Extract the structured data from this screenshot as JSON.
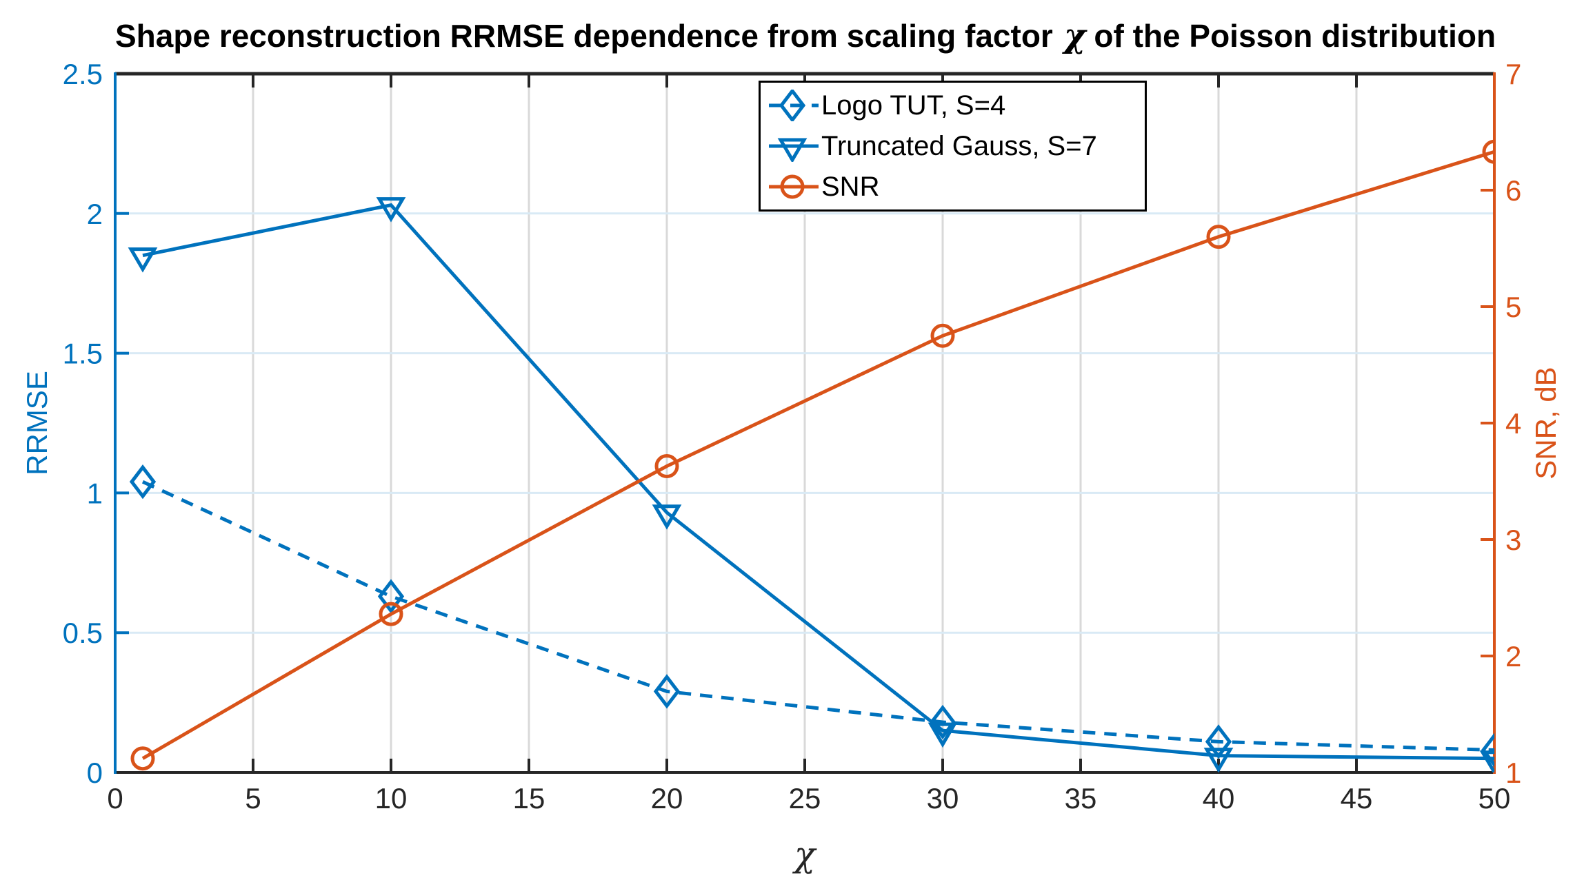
{
  "figure": {
    "title": {
      "prefix": "Shape reconstruction RRMSE dependence from scaling factor",
      "chi": "χ",
      "suffix": "of the Poisson distribution"
    },
    "colors": {
      "left_axis_blue": "#0072BD",
      "right_axis_orange": "#D95319",
      "x_axis_dark": "#262626",
      "y_grid": "#D9EAF5",
      "x_grid": "#D9D9D9",
      "background": "#FFFFFF",
      "legend_border": "#000000"
    }
  },
  "chart_data": {
    "type": "line",
    "title": "Shape reconstruction RRMSE dependence from scaling factor χ of the Poisson distribution",
    "x": [
      1,
      10,
      20,
      30,
      40,
      50
    ],
    "series": [
      {
        "name": "Logo TUT, S=4",
        "axis": "left",
        "color": "#0072BD",
        "line_style": "dashed",
        "marker": "diamond",
        "values": [
          1.04,
          0.63,
          0.29,
          0.18,
          0.11,
          0.08
        ]
      },
      {
        "name": "Truncated Gauss, S=7",
        "axis": "left",
        "color": "#0072BD",
        "line_style": "solid",
        "marker": "triangle-down",
        "values": [
          1.85,
          2.03,
          0.93,
          0.15,
          0.06,
          0.05
        ]
      },
      {
        "name": "SNR",
        "axis": "right",
        "color": "#D95319",
        "line_style": "solid",
        "marker": "circle",
        "values": [
          1.12,
          2.36,
          3.63,
          4.75,
          5.6,
          6.33
        ]
      }
    ],
    "xlabel": "χ",
    "ylabel_left": "RRMSE",
    "ylabel_right": "SNR, dB",
    "xlim": [
      0,
      50
    ],
    "ylim_left": [
      0,
      2.5
    ],
    "ylim_right": [
      1,
      7
    ],
    "x_ticks": [
      "0",
      "5",
      "10",
      "15",
      "20",
      "25",
      "30",
      "35",
      "40",
      "45",
      "50"
    ],
    "y_ticks_left": [
      "0",
      "0.5",
      "1",
      "1.5",
      "2",
      "2.5"
    ],
    "y_ticks_right": [
      "1",
      "2",
      "3",
      "4",
      "5",
      "6",
      "7"
    ],
    "grid": true,
    "legend_position": "top-center"
  }
}
